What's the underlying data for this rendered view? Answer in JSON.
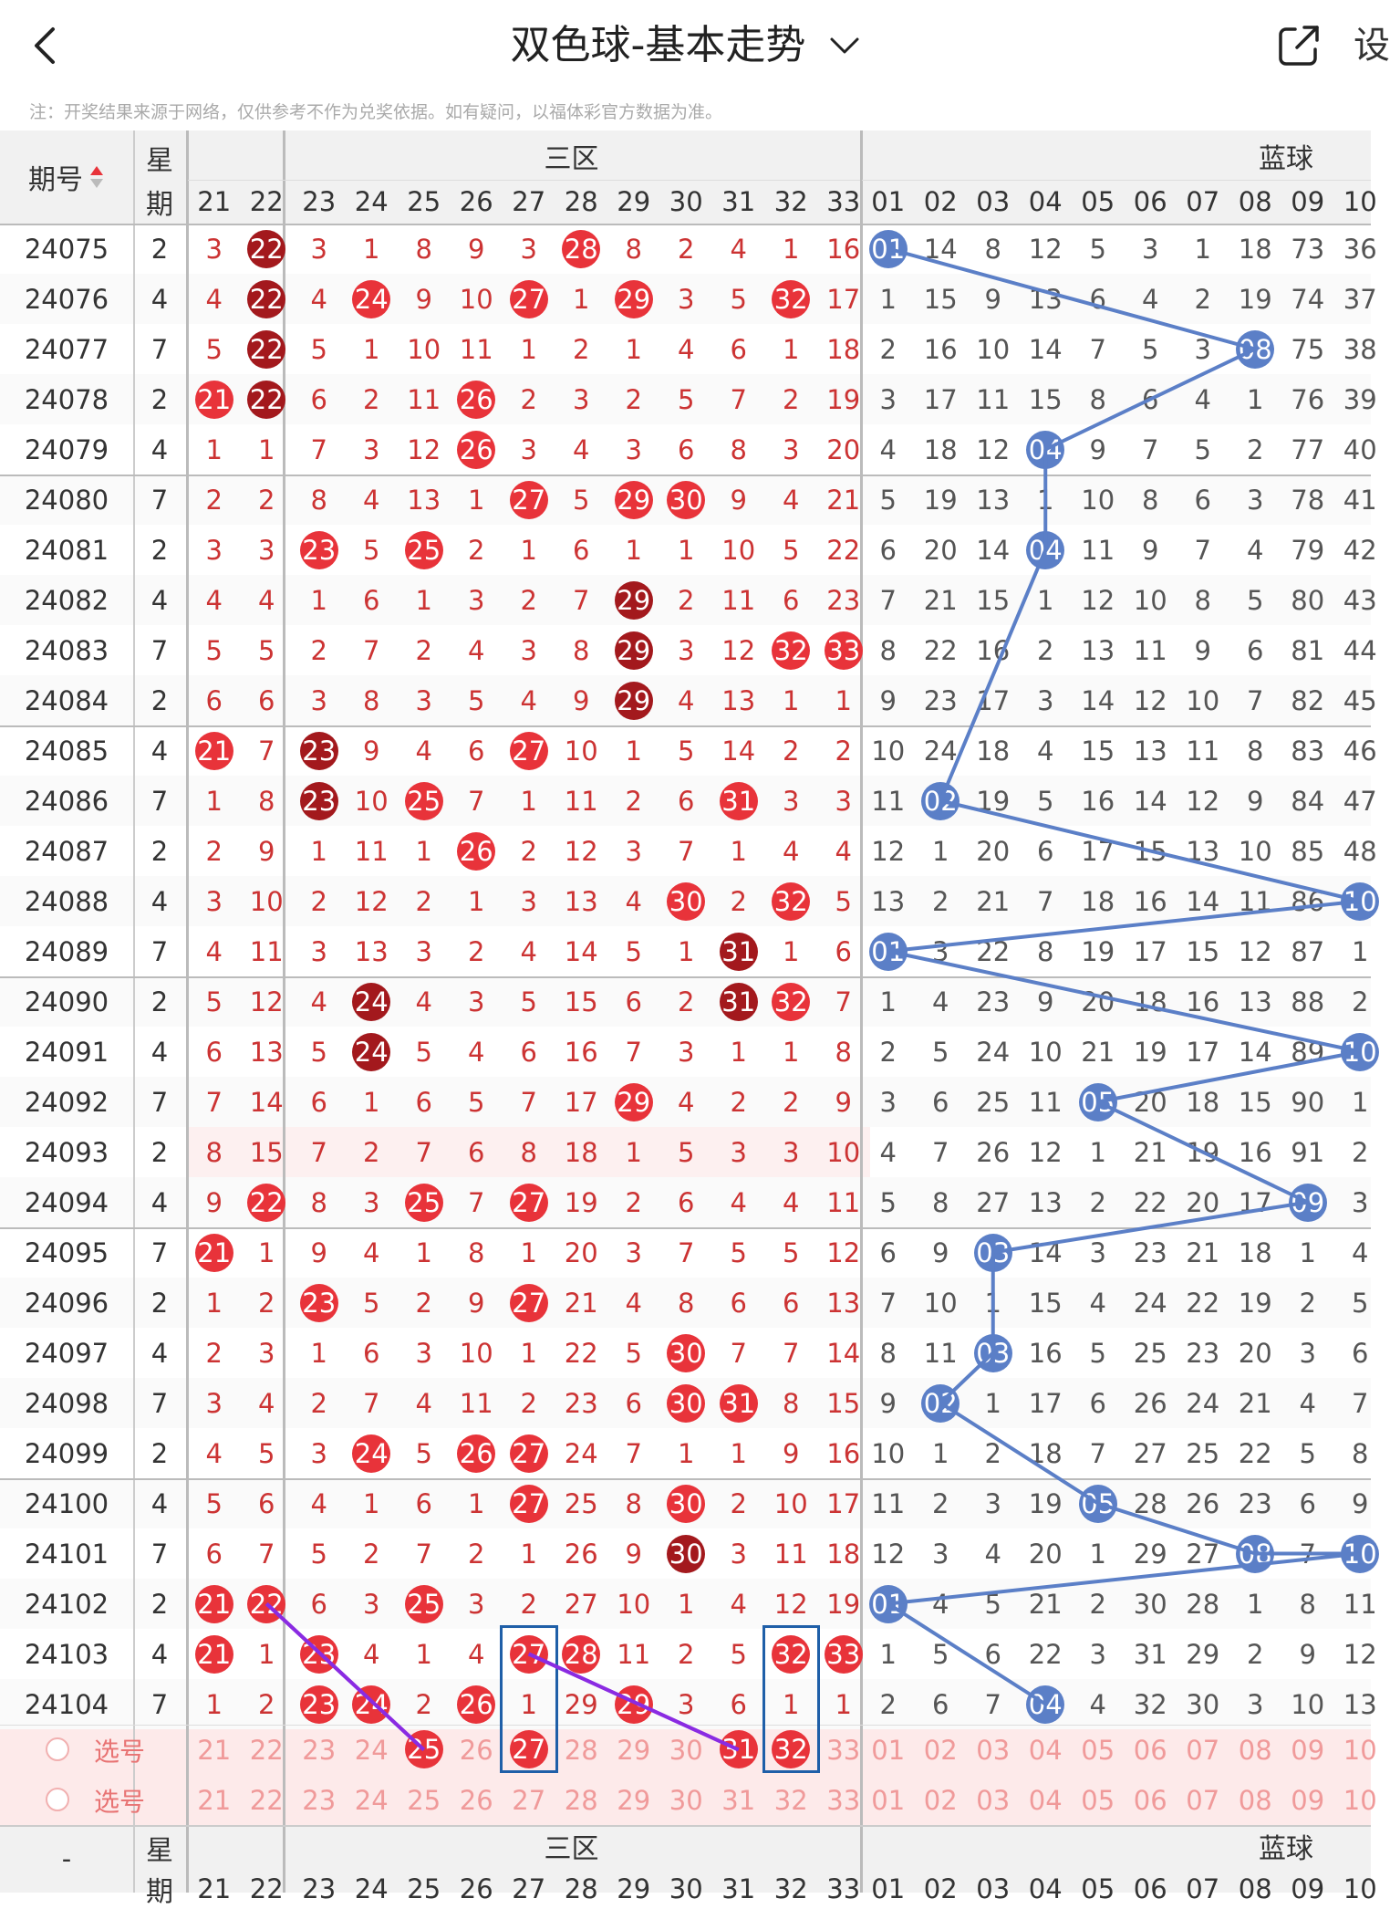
{
  "header": {
    "title": "双色球-基本走势",
    "set_label": "设",
    "note": "注：开奖结果来源于网络，仅供参考不作为兑奖依据。如有疑问，以福体彩官方数据为准。"
  },
  "table": {
    "issue_header": "期号",
    "week_header_top": "星",
    "week_header_bottom": "期",
    "red_zone_label": "三区",
    "blue_zone_label": "蓝球",
    "red_columns": [
      "21",
      "22",
      "23",
      "24",
      "25",
      "26",
      "27",
      "28",
      "29",
      "30",
      "31",
      "32",
      "33"
    ],
    "blue_columns": [
      "01",
      "02",
      "03",
      "04",
      "05",
      "06",
      "07",
      "08",
      "09",
      "10"
    ],
    "select_label": "选号",
    "footer_issue": "-",
    "rows": [
      {
        "issue": "24075",
        "week": "2",
        "red": [
          "3",
          "22",
          "3",
          "1",
          "8",
          "9",
          "3",
          "28",
          "8",
          "2",
          "4",
          "1",
          "16"
        ],
        "blue": [
          "01",
          "14",
          "8",
          "12",
          "5",
          "3",
          "1",
          "18",
          "73",
          "36"
        ]
      },
      {
        "issue": "24076",
        "week": "4",
        "red": [
          "4",
          "22",
          "4",
          "24",
          "9",
          "10",
          "27",
          "1",
          "29",
          "3",
          "5",
          "32",
          "17"
        ],
        "blue": [
          "1",
          "15",
          "9",
          "13",
          "6",
          "4",
          "2",
          "19",
          "74",
          "37"
        ]
      },
      {
        "issue": "24077",
        "week": "7",
        "red": [
          "5",
          "22",
          "5",
          "1",
          "10",
          "11",
          "1",
          "2",
          "1",
          "4",
          "6",
          "1",
          "18"
        ],
        "blue": [
          "2",
          "16",
          "10",
          "14",
          "7",
          "5",
          "3",
          "08",
          "75",
          "38"
        ]
      },
      {
        "issue": "24078",
        "week": "2",
        "red": [
          "21",
          "22",
          "6",
          "2",
          "11",
          "26",
          "2",
          "3",
          "2",
          "5",
          "7",
          "2",
          "19"
        ],
        "blue": [
          "3",
          "17",
          "11",
          "15",
          "8",
          "6",
          "4",
          "1",
          "76",
          "39"
        ]
      },
      {
        "issue": "24079",
        "week": "4",
        "red": [
          "1",
          "1",
          "7",
          "3",
          "12",
          "26",
          "3",
          "4",
          "3",
          "6",
          "8",
          "3",
          "20"
        ],
        "blue": [
          "4",
          "18",
          "12",
          "04",
          "9",
          "7",
          "5",
          "2",
          "77",
          "40"
        ]
      },
      {
        "issue": "24080",
        "week": "7",
        "red": [
          "2",
          "2",
          "8",
          "4",
          "13",
          "1",
          "27",
          "5",
          "29",
          "30",
          "9",
          "4",
          "21"
        ],
        "blue": [
          "5",
          "19",
          "13",
          "1",
          "10",
          "8",
          "6",
          "3",
          "78",
          "41"
        ]
      },
      {
        "issue": "24081",
        "week": "2",
        "red": [
          "3",
          "3",
          "23",
          "5",
          "25",
          "2",
          "1",
          "6",
          "1",
          "1",
          "10",
          "5",
          "22"
        ],
        "blue": [
          "6",
          "20",
          "14",
          "04",
          "11",
          "9",
          "7",
          "4",
          "79",
          "42"
        ]
      },
      {
        "issue": "24082",
        "week": "4",
        "red": [
          "4",
          "4",
          "1",
          "6",
          "1",
          "3",
          "2",
          "7",
          "29",
          "2",
          "11",
          "6",
          "23"
        ],
        "blue": [
          "7",
          "21",
          "15",
          "1",
          "12",
          "10",
          "8",
          "5",
          "80",
          "43"
        ]
      },
      {
        "issue": "24083",
        "week": "7",
        "red": [
          "5",
          "5",
          "2",
          "7",
          "2",
          "4",
          "3",
          "8",
          "29",
          "3",
          "12",
          "32",
          "33"
        ],
        "blue": [
          "8",
          "22",
          "16",
          "2",
          "13",
          "11",
          "9",
          "6",
          "81",
          "44"
        ]
      },
      {
        "issue": "24084",
        "week": "2",
        "red": [
          "6",
          "6",
          "3",
          "8",
          "3",
          "5",
          "4",
          "9",
          "29",
          "4",
          "13",
          "1",
          "1"
        ],
        "blue": [
          "9",
          "23",
          "17",
          "3",
          "14",
          "12",
          "10",
          "7",
          "82",
          "45"
        ]
      },
      {
        "issue": "24085",
        "week": "4",
        "red": [
          "21",
          "7",
          "23",
          "9",
          "4",
          "6",
          "27",
          "10",
          "1",
          "5",
          "14",
          "2",
          "2"
        ],
        "blue": [
          "10",
          "24",
          "18",
          "4",
          "15",
          "13",
          "11",
          "8",
          "83",
          "46"
        ]
      },
      {
        "issue": "24086",
        "week": "7",
        "red": [
          "1",
          "8",
          "23",
          "10",
          "25",
          "7",
          "1",
          "11",
          "2",
          "6",
          "31",
          "3",
          "3"
        ],
        "blue": [
          "11",
          "02",
          "19",
          "5",
          "16",
          "14",
          "12",
          "9",
          "84",
          "47"
        ]
      },
      {
        "issue": "24087",
        "week": "2",
        "red": [
          "2",
          "9",
          "1",
          "11",
          "1",
          "26",
          "2",
          "12",
          "3",
          "7",
          "1",
          "4",
          "4"
        ],
        "blue": [
          "12",
          "1",
          "20",
          "6",
          "17",
          "15",
          "13",
          "10",
          "85",
          "48"
        ]
      },
      {
        "issue": "24088",
        "week": "4",
        "red": [
          "3",
          "10",
          "2",
          "12",
          "2",
          "1",
          "3",
          "13",
          "4",
          "30",
          "2",
          "32",
          "5"
        ],
        "blue": [
          "13",
          "2",
          "21",
          "7",
          "18",
          "16",
          "14",
          "11",
          "86",
          "10"
        ]
      },
      {
        "issue": "24089",
        "week": "7",
        "red": [
          "4",
          "11",
          "3",
          "13",
          "3",
          "2",
          "4",
          "14",
          "5",
          "1",
          "31",
          "1",
          "6"
        ],
        "blue": [
          "01",
          "3",
          "22",
          "8",
          "19",
          "17",
          "15",
          "12",
          "87",
          "1"
        ]
      },
      {
        "issue": "24090",
        "week": "2",
        "red": [
          "5",
          "12",
          "4",
          "24",
          "4",
          "3",
          "5",
          "15",
          "6",
          "2",
          "31",
          "32",
          "7"
        ],
        "blue": [
          "1",
          "4",
          "23",
          "9",
          "20",
          "18",
          "16",
          "13",
          "88",
          "2"
        ]
      },
      {
        "issue": "24091",
        "week": "4",
        "red": [
          "6",
          "13",
          "5",
          "24",
          "5",
          "4",
          "6",
          "16",
          "7",
          "3",
          "1",
          "1",
          "8"
        ],
        "blue": [
          "2",
          "5",
          "24",
          "10",
          "21",
          "19",
          "17",
          "14",
          "89",
          "10"
        ]
      },
      {
        "issue": "24092",
        "week": "7",
        "red": [
          "7",
          "14",
          "6",
          "1",
          "6",
          "5",
          "7",
          "17",
          "29",
          "4",
          "2",
          "2",
          "9"
        ],
        "blue": [
          "3",
          "6",
          "25",
          "11",
          "05",
          "20",
          "18",
          "15",
          "90",
          "1"
        ]
      },
      {
        "issue": "24093",
        "week": "2",
        "red": [
          "8",
          "15",
          "7",
          "2",
          "7",
          "6",
          "8",
          "18",
          "1",
          "5",
          "3",
          "3",
          "10"
        ],
        "blue": [
          "4",
          "7",
          "26",
          "12",
          "1",
          "21",
          "19",
          "16",
          "91",
          "2"
        ]
      },
      {
        "issue": "24094",
        "week": "4",
        "red": [
          "9",
          "22",
          "8",
          "3",
          "25",
          "7",
          "27",
          "19",
          "2",
          "6",
          "4",
          "4",
          "11"
        ],
        "blue": [
          "5",
          "8",
          "27",
          "13",
          "2",
          "22",
          "20",
          "17",
          "09",
          "3"
        ]
      },
      {
        "issue": "24095",
        "week": "7",
        "red": [
          "21",
          "1",
          "9",
          "4",
          "1",
          "8",
          "1",
          "20",
          "3",
          "7",
          "5",
          "5",
          "12"
        ],
        "blue": [
          "6",
          "9",
          "03",
          "14",
          "3",
          "23",
          "21",
          "18",
          "1",
          "4"
        ]
      },
      {
        "issue": "24096",
        "week": "2",
        "red": [
          "1",
          "2",
          "23",
          "5",
          "2",
          "9",
          "27",
          "21",
          "4",
          "8",
          "6",
          "6",
          "13"
        ],
        "blue": [
          "7",
          "10",
          "1",
          "15",
          "4",
          "24",
          "22",
          "19",
          "2",
          "5"
        ]
      },
      {
        "issue": "24097",
        "week": "4",
        "red": [
          "2",
          "3",
          "1",
          "6",
          "3",
          "10",
          "1",
          "22",
          "5",
          "30",
          "7",
          "7",
          "14"
        ],
        "blue": [
          "8",
          "11",
          "03",
          "16",
          "5",
          "25",
          "23",
          "20",
          "3",
          "6"
        ]
      },
      {
        "issue": "24098",
        "week": "7",
        "red": [
          "3",
          "4",
          "2",
          "7",
          "4",
          "11",
          "2",
          "23",
          "6",
          "30",
          "31",
          "8",
          "15"
        ],
        "blue": [
          "9",
          "02",
          "1",
          "17",
          "6",
          "26",
          "24",
          "21",
          "4",
          "7"
        ]
      },
      {
        "issue": "24099",
        "week": "2",
        "red": [
          "4",
          "5",
          "3",
          "24",
          "5",
          "26",
          "27",
          "24",
          "7",
          "1",
          "1",
          "9",
          "16"
        ],
        "blue": [
          "10",
          "1",
          "2",
          "18",
          "7",
          "27",
          "25",
          "22",
          "5",
          "8"
        ]
      },
      {
        "issue": "24100",
        "week": "4",
        "red": [
          "5",
          "6",
          "4",
          "1",
          "6",
          "1",
          "27",
          "25",
          "8",
          "30",
          "2",
          "10",
          "17"
        ],
        "blue": [
          "11",
          "2",
          "3",
          "19",
          "05",
          "28",
          "26",
          "23",
          "6",
          "9"
        ]
      },
      {
        "issue": "24101",
        "week": "7",
        "red": [
          "6",
          "7",
          "5",
          "2",
          "7",
          "2",
          "1",
          "26",
          "9",
          "30",
          "3",
          "11",
          "18"
        ],
        "blue": [
          "12",
          "3",
          "4",
          "20",
          "1",
          "29",
          "27",
          "08",
          "7",
          "10"
        ]
      },
      {
        "issue": "24102",
        "week": "2",
        "red": [
          "21",
          "22",
          "6",
          "3",
          "25",
          "3",
          "2",
          "27",
          "10",
          "1",
          "4",
          "12",
          "19"
        ],
        "blue": [
          "01",
          "4",
          "5",
          "21",
          "2",
          "30",
          "28",
          "1",
          "8",
          "11"
        ]
      },
      {
        "issue": "24103",
        "week": "4",
        "red": [
          "21",
          "1",
          "23",
          "4",
          "1",
          "4",
          "27",
          "28",
          "11",
          "2",
          "5",
          "32",
          "33"
        ],
        "blue": [
          "1",
          "5",
          "6",
          "22",
          "3",
          "31",
          "29",
          "2",
          "9",
          "12"
        ]
      },
      {
        "issue": "24104",
        "week": "7",
        "red": [
          "1",
          "2",
          "23",
          "24",
          "2",
          "26",
          "1",
          "29",
          "29",
          "3",
          "6",
          "1",
          "1"
        ],
        "blue": [
          "2",
          "6",
          "7",
          "04",
          "4",
          "32",
          "30",
          "3",
          "10",
          "13"
        ]
      }
    ],
    "select_row1_red_selected": [
      "25",
      "27",
      "31",
      "32"
    ]
  },
  "colors": {
    "red_ball": "#e8333a",
    "dark_red_ball": "#a3191d",
    "blue_ball": "#5b7fc7",
    "trend_line": "#5b7fc7",
    "purple_line": "#8a2be2",
    "box_border": "#1f5fa8"
  }
}
